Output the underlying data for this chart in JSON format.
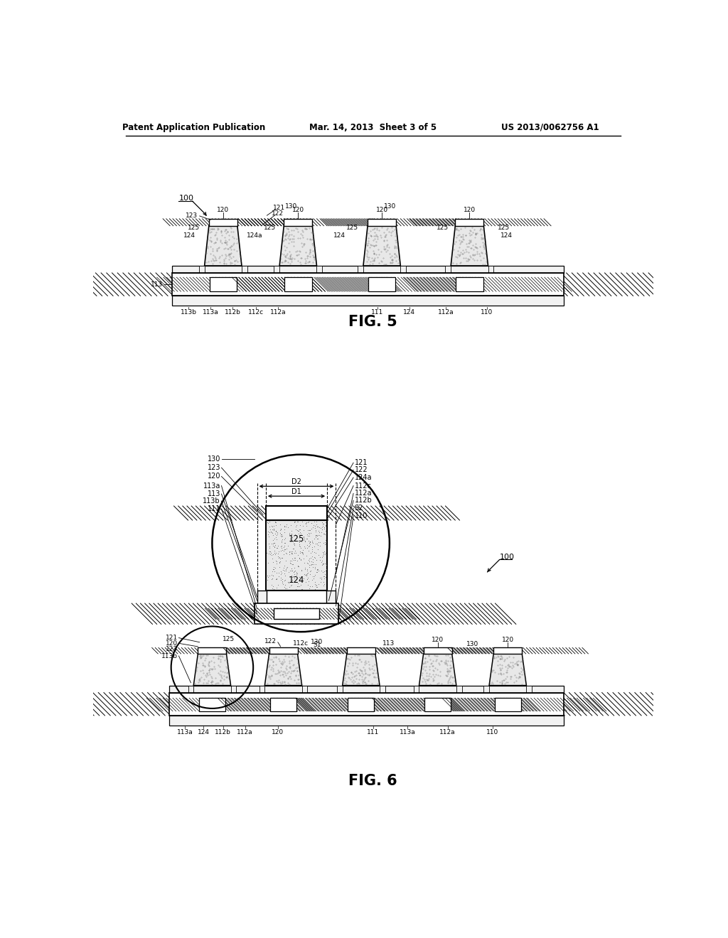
{
  "header_left": "Patent Application Publication",
  "header_mid": "Mar. 14, 2013  Sheet 3 of 5",
  "header_right": "US 2013/0062756 A1",
  "fig5_label": "FIG. 5",
  "fig6_label": "FIG. 6",
  "bg_color": "#ffffff",
  "line_color": "#000000"
}
